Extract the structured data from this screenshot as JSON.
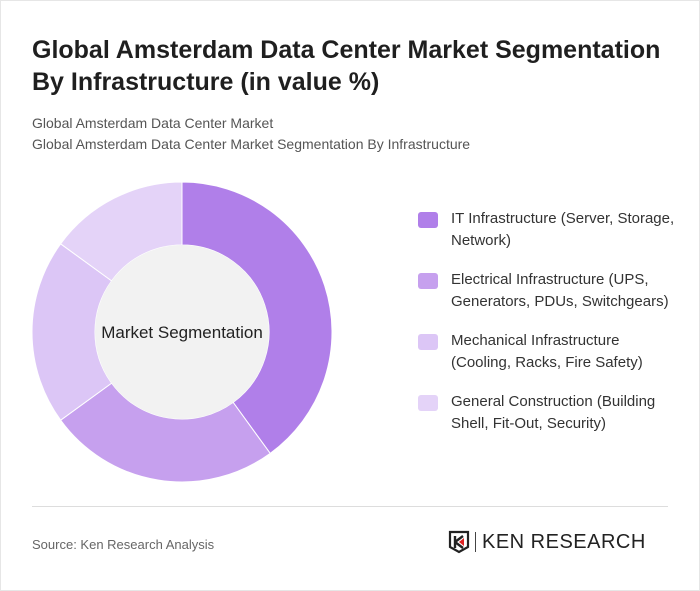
{
  "title": "Global Amsterdam Data Center Market Segmentation By Infrastructure (in value %)",
  "subtitle1": "Global Amsterdam Data Center Market",
  "subtitle2": "Global Amsterdam Data Center Market Segmentation By Infrastructure",
  "source": "Source: Ken Research Analysis",
  "logo_text": "KEN RESEARCH",
  "chart_data": {
    "type": "pie",
    "donut": true,
    "center_label": "Market Segmentation",
    "legend_position": "right",
    "categories": [
      "IT Infrastructure (Server, Storage, Network)",
      "Electrical Infrastructure (UPS, Generators, PDUs, Switchgears)",
      "Mechanical Infrastructure (Cooling, Racks, Fire Safety)",
      "General Construction (Building Shell, Fit-Out, Security)"
    ],
    "values": [
      40,
      25,
      20,
      15
    ],
    "colors": [
      "#b07fe9",
      "#c6a0ee",
      "#dcc6f6",
      "#e4d3f8"
    ]
  }
}
